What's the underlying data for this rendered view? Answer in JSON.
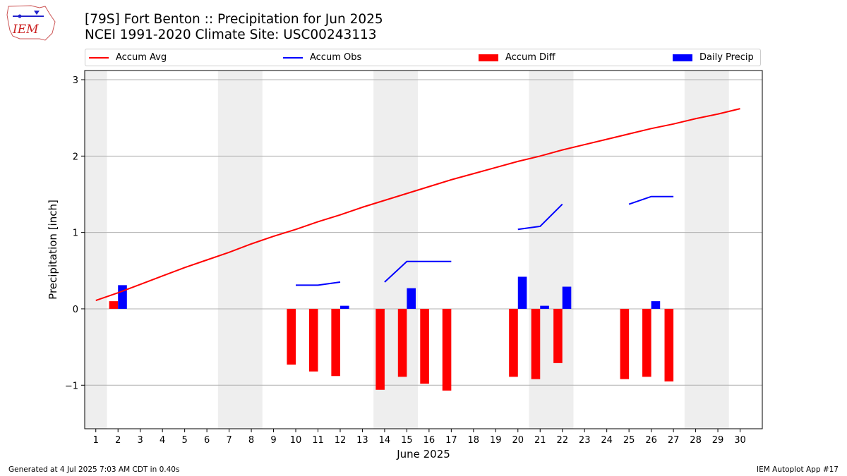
{
  "header": {
    "title_line1": "[79S] Fort Benton :: Precipitation for Jun 2025",
    "title_line2": "NCEI 1991-2020 Climate Site: USC00243113",
    "logo_text": "IEM"
  },
  "legend": {
    "accum_avg": "Accum Avg",
    "accum_obs": "Accum Obs",
    "accum_diff": "Accum Diff",
    "daily_precip": "Daily Precip"
  },
  "footer": {
    "left": "Generated at 4 Jul 2025 7:03 AM CDT in 0.40s",
    "right": "IEM Autoplot App #17"
  },
  "colors": {
    "accum_avg": "#ff0000",
    "accum_obs": "#0000ff",
    "accum_diff": "#ff0000",
    "daily_precip": "#0000ff",
    "weekend_shade": "#eeeeee",
    "grid": "#b0b0b0"
  },
  "chart_data": {
    "type": "bar",
    "xlabel": "June 2025",
    "ylabel": "Precipitation [inch]",
    "xlim": [
      0.5,
      31
    ],
    "ylim": [
      -1.57,
      3.12
    ],
    "x_ticks": [
      1,
      2,
      3,
      4,
      5,
      6,
      7,
      8,
      9,
      10,
      11,
      12,
      13,
      14,
      15,
      16,
      17,
      18,
      19,
      20,
      21,
      22,
      23,
      24,
      25,
      26,
      27,
      28,
      29,
      30
    ],
    "y_ticks": [
      -1,
      0,
      1,
      2,
      3
    ],
    "y_tick_labels": [
      "−1",
      "0",
      "1",
      "2",
      "3"
    ],
    "grid": "horizontal",
    "weekend_bands": [
      [
        0.5,
        1.5
      ],
      [
        6.5,
        8.5
      ],
      [
        13.5,
        15.5
      ],
      [
        20.5,
        22.5
      ],
      [
        27.5,
        29.5
      ]
    ],
    "days": [
      1,
      2,
      3,
      4,
      5,
      6,
      7,
      8,
      9,
      10,
      11,
      12,
      13,
      14,
      15,
      16,
      17,
      18,
      19,
      20,
      21,
      22,
      23,
      24,
      25,
      26,
      27,
      28,
      29,
      30
    ],
    "series": [
      {
        "name": "Accum Avg",
        "kind": "line",
        "values": [
          0.11,
          0.21,
          0.32,
          0.43,
          0.54,
          0.64,
          0.74,
          0.85,
          0.95,
          1.04,
          1.14,
          1.23,
          1.33,
          1.42,
          1.51,
          1.6,
          1.69,
          1.77,
          1.85,
          1.93,
          2.0,
          2.08,
          2.15,
          2.22,
          2.29,
          2.36,
          2.42,
          2.49,
          2.55,
          2.62
        ]
      },
      {
        "name": "Accum Obs",
        "kind": "line",
        "values": [
          null,
          null,
          null,
          null,
          null,
          null,
          null,
          null,
          null,
          0.31,
          0.31,
          0.35,
          null,
          0.35,
          0.62,
          0.62,
          0.62,
          null,
          null,
          1.04,
          1.08,
          1.37,
          null,
          null,
          1.37,
          1.47,
          1.47,
          null,
          null,
          null
        ]
      },
      {
        "name": "Accum Diff",
        "kind": "bar",
        "values": [
          null,
          0.1,
          null,
          null,
          null,
          null,
          null,
          null,
          null,
          -0.73,
          -0.82,
          -0.88,
          null,
          -1.06,
          -0.89,
          -0.98,
          -1.07,
          null,
          null,
          -0.89,
          -0.92,
          -0.71,
          null,
          null,
          -0.92,
          -0.89,
          -0.95,
          null,
          null,
          null
        ]
      },
      {
        "name": "Daily Precip",
        "kind": "bar",
        "values": [
          null,
          0.31,
          null,
          null,
          null,
          null,
          null,
          null,
          null,
          null,
          null,
          0.04,
          null,
          null,
          0.27,
          null,
          null,
          null,
          null,
          0.42,
          0.04,
          0.29,
          null,
          null,
          null,
          0.1,
          null,
          null,
          null,
          null
        ]
      }
    ]
  }
}
